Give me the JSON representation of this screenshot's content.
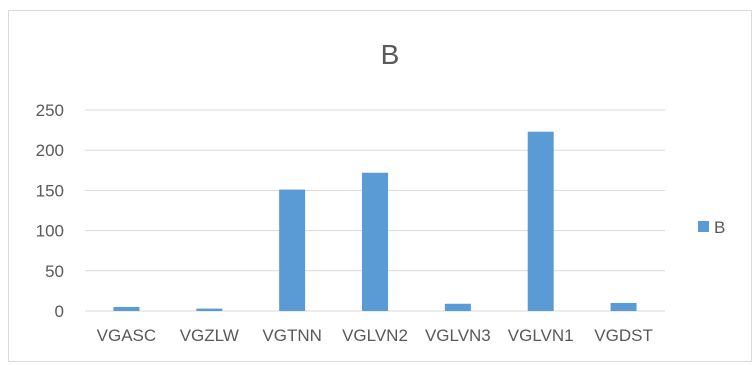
{
  "chart_data": {
    "type": "bar",
    "title": "B",
    "xlabel": "",
    "ylabel": "",
    "categories": [
      "VGASC",
      "VGZLW",
      "VGTNN",
      "VGLVN2",
      "VGLVN3",
      "VGLVN1",
      "VGDST"
    ],
    "series": [
      {
        "name": "B",
        "values": [
          5,
          3,
          151,
          172,
          9,
          223,
          10
        ],
        "color": "#5b9bd5"
      }
    ],
    "ylim": [
      0,
      250
    ],
    "yticks": [
      "0",
      "50",
      "100",
      "150",
      "200",
      "250"
    ],
    "grid": true,
    "legend_position": "right"
  }
}
